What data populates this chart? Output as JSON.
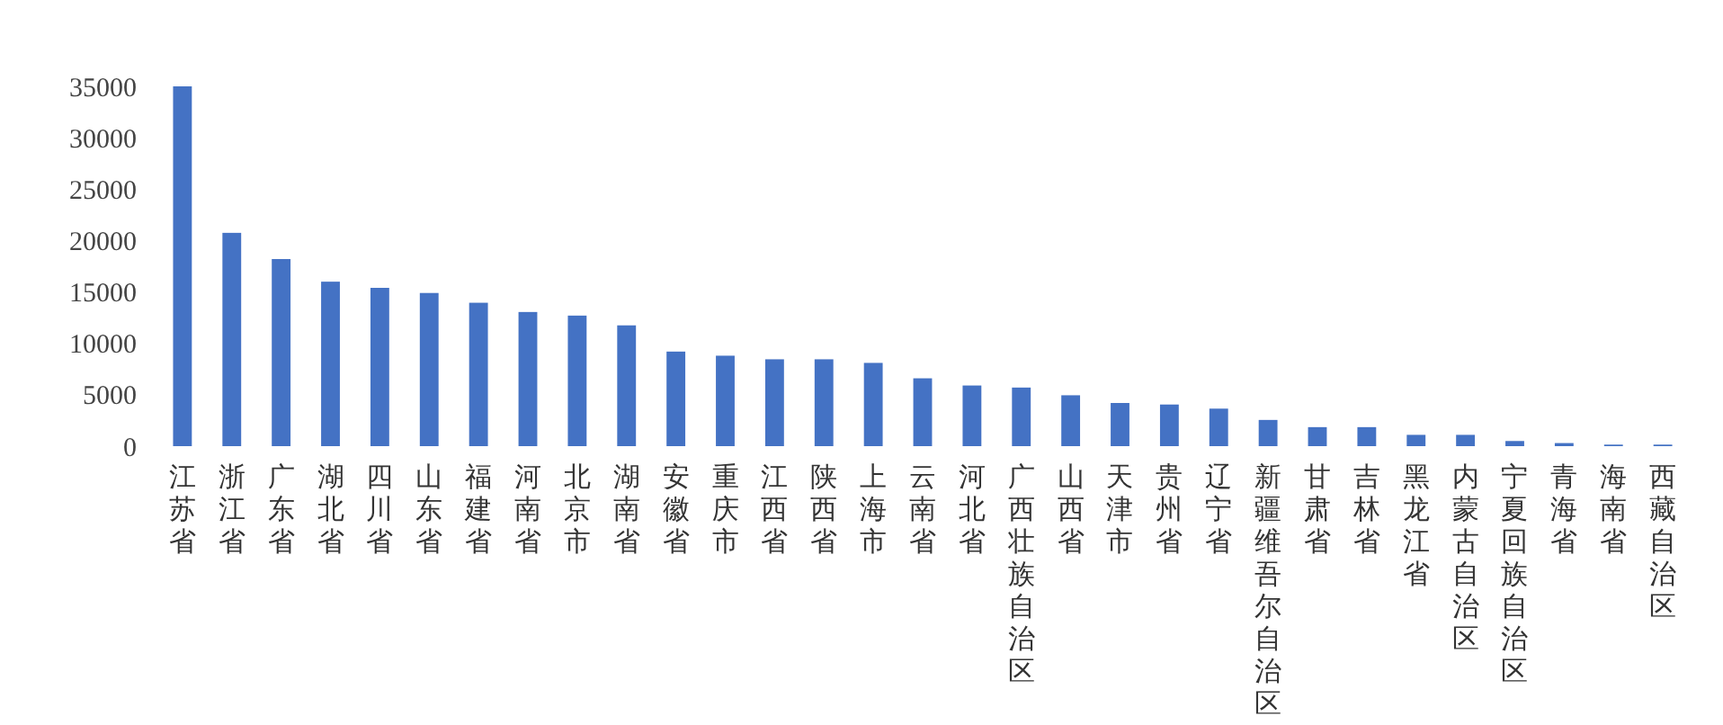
{
  "chart_data": {
    "type": "bar",
    "categories": [
      "江苏省",
      "浙江省",
      "广东省",
      "湖北省",
      "四川省",
      "山东省",
      "福建省",
      "河南省",
      "北京市",
      "湖南省",
      "安徽省",
      "重庆市",
      "江西省",
      "陕西省",
      "上海市",
      "云南省",
      "河北省",
      "广西壮族自治区",
      "山西省",
      "天津市",
      "贵州省",
      "辽宁省",
      "新疆维吾尔自治区",
      "甘肃省",
      "吉林省",
      "黑龙江省",
      "内蒙古自治区",
      "宁夏回族自治区",
      "青海省",
      "海南省",
      "西藏自治区"
    ],
    "values": [
      35000,
      20750,
      18200,
      16000,
      15400,
      14900,
      13950,
      13050,
      12700,
      11750,
      9200,
      8800,
      8450,
      8450,
      8100,
      6600,
      5900,
      5700,
      4950,
      4200,
      4050,
      3650,
      2550,
      1850,
      1850,
      1100,
      1100,
      500,
      300,
      150,
      150
    ],
    "color": "#4472c4",
    "ylim": [
      0,
      35000
    ],
    "yticks": [
      0,
      5000,
      10000,
      15000,
      20000,
      25000,
      30000,
      35000
    ],
    "grid": false
  }
}
